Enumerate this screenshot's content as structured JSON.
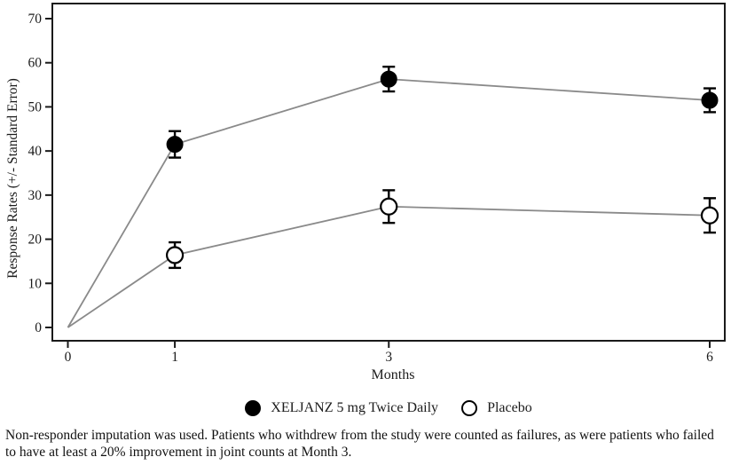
{
  "chart_data": {
    "type": "line",
    "x": [
      0,
      1,
      3,
      6
    ],
    "marker_months": [
      1,
      3,
      6
    ],
    "series": [
      {
        "name": "XELJANZ 5 mg Twice Daily",
        "marker": "filled-circle",
        "values": [
          0,
          41.5,
          56.3,
          51.5
        ],
        "std_err": [
          0,
          3.0,
          2.8,
          2.7
        ]
      },
      {
        "name": "Placebo",
        "marker": "open-circle",
        "values": [
          0,
          16.4,
          27.4,
          25.4
        ],
        "std_err": [
          0,
          2.9,
          3.7,
          3.9
        ]
      }
    ],
    "title": "",
    "xlabel": "Months",
    "ylabel": "Response Rates (+/- Standard Error)",
    "xticks": [
      0,
      1,
      3,
      6
    ],
    "yticks": [
      0,
      10,
      20,
      30,
      40,
      50,
      60,
      70
    ],
    "xlim": [
      0,
      6.15
    ],
    "ylim": [
      0,
      73
    ],
    "grid": false,
    "legend_position": "bottom",
    "line_color": "#8a8a8a",
    "marker_color": "#000000",
    "axis_color": "#1a1a1a"
  },
  "footnote": "Non-responder imputation was used. Patients who withdrew from the study were counted as failures, as were patients who failed to have at least a 20% improvement in joint counts at Month 3."
}
